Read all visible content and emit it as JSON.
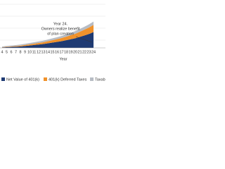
{
  "chart_data": {
    "type": "stacked-area",
    "annotation": [
      "Year 24.",
      "Owners realize benefit",
      "of plan creation"
    ],
    "x_label": "Year",
    "categories": [
      "4",
      "5",
      "6",
      "7",
      "8",
      "9",
      "10",
      "11",
      "12",
      "13",
      "14",
      "15",
      "16",
      "17",
      "18",
      "19",
      "20",
      "21",
      "22",
      "23",
      "24"
    ],
    "series": [
      {
        "name": "Net Value of 401(k)",
        "color": "#1f3b73",
        "values": [
          1,
          1.5,
          2,
          2.5,
          3,
          4,
          5,
          6,
          7,
          8,
          9.5,
          11,
          12.5,
          14,
          16,
          18,
          20,
          23,
          26,
          29,
          33
        ]
      },
      {
        "name": "401(k) Deferred Taxes",
        "color": "#f0922b",
        "values": [
          0.5,
          0.8,
          1,
          1.3,
          1.6,
          2,
          2.4,
          2.8,
          3.3,
          3.8,
          4.4,
          5,
          5.7,
          6.5,
          7.4,
          8.4,
          9.5,
          10.7,
          12,
          13.5,
          15
        ]
      },
      {
        "name": "Taxable",
        "color": "#b7bcc4",
        "values": [
          1.5,
          1.7,
          1.9,
          2.1,
          2.3,
          2.5,
          2.7,
          2.9,
          3.1,
          3.3,
          3.5,
          3.8,
          4.1,
          4.4,
          4.7,
          5,
          5.4,
          5.8,
          6.2,
          6.6,
          7
        ]
      }
    ],
    "ylim": [
      0,
      100
    ]
  }
}
